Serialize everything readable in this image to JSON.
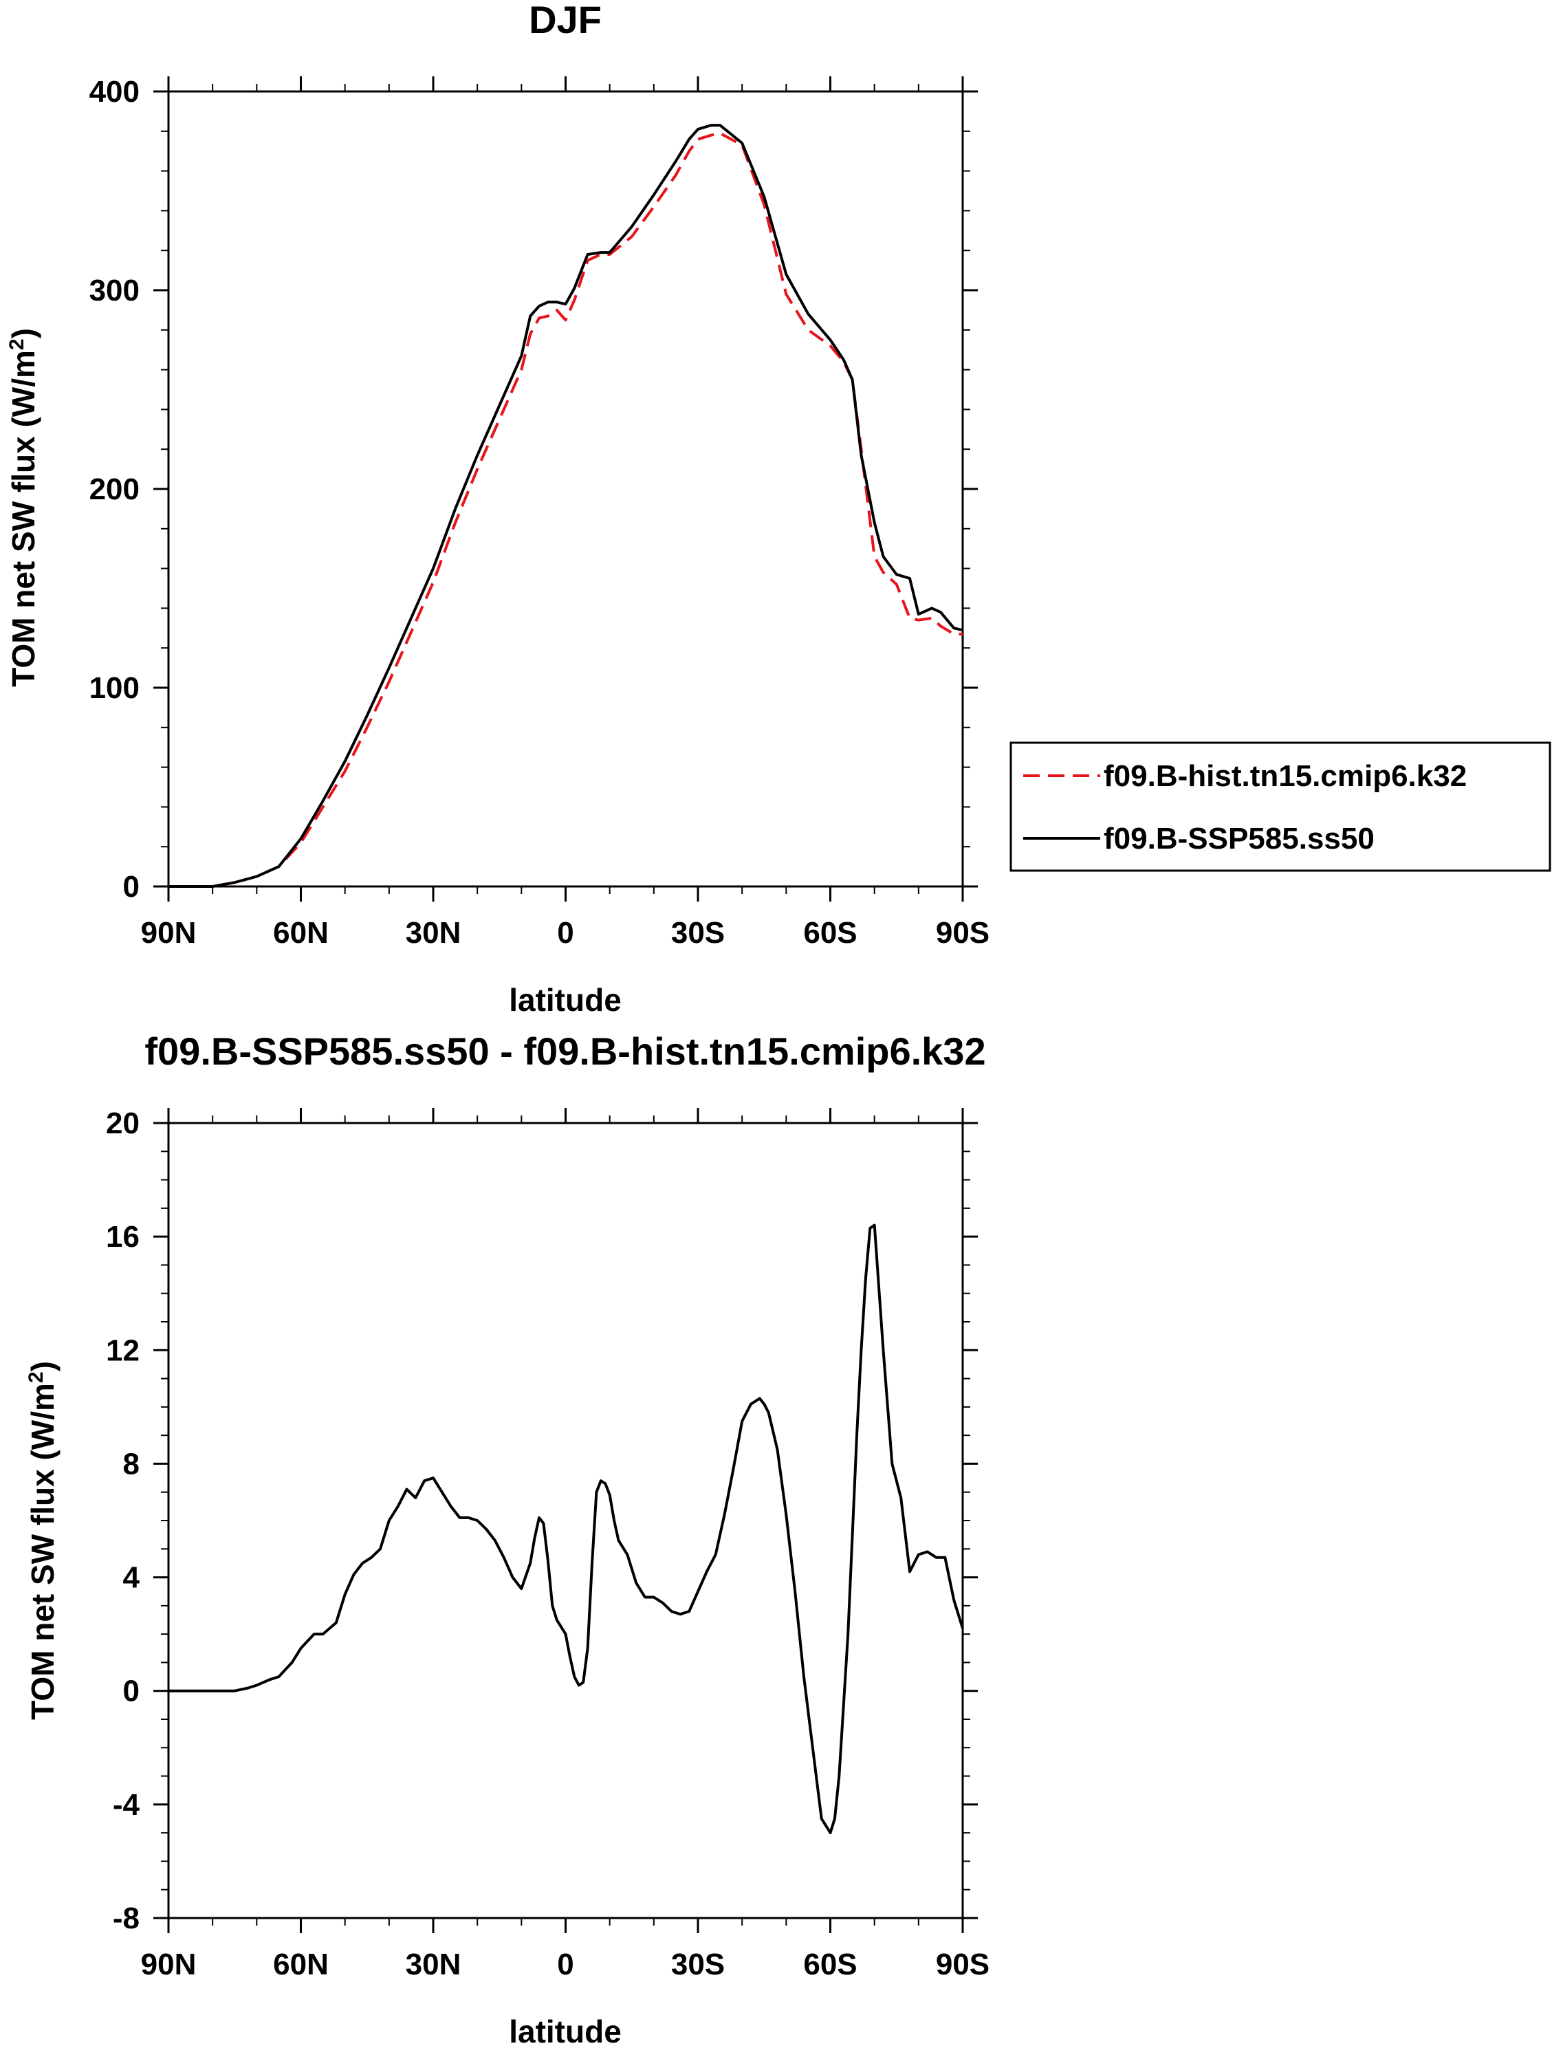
{
  "chart_data": [
    {
      "type": "line",
      "title": "DJF",
      "xlabel": "latitude",
      "ylabel_prefix": "TOM net SW flux (W/m",
      "ylabel_sup": "2",
      "ylabel_suffix": ")",
      "xlim": [
        90,
        -90
      ],
      "ylim": [
        0,
        400
      ],
      "xticks": [
        90,
        60,
        30,
        0,
        -30,
        -60,
        -90
      ],
      "xtick_labels": [
        "90N",
        "60N",
        "30N",
        "0",
        "30S",
        "60S",
        "90S"
      ],
      "yticks": [
        0,
        100,
        200,
        300,
        400
      ],
      "ytick_labels": [
        "0",
        "100",
        "200",
        "300",
        "400"
      ],
      "legend_position": "right",
      "series": [
        {
          "name": "f09.B-hist.tn15.cmip6.k32",
          "color": "#e8141b",
          "style": "dashed",
          "x": [
            90,
            85,
            80,
            75,
            70,
            65,
            60,
            55,
            50,
            45,
            40,
            35,
            30,
            25,
            20,
            15,
            10,
            8,
            6,
            4,
            2,
            0,
            -2,
            -5,
            -8,
            -10,
            -15,
            -20,
            -25,
            -28,
            -30,
            -33,
            -35,
            -40,
            -45,
            -50,
            -55,
            -60,
            -63,
            -65,
            -67,
            -70,
            -72,
            -75,
            -78,
            -80,
            -83,
            -85,
            -88,
            -90
          ],
          "y": [
            0,
            0,
            0,
            2,
            5,
            10,
            22,
            40,
            58,
            80,
            103,
            128,
            153,
            183,
            210,
            235,
            260,
            278,
            286,
            287,
            290,
            285,
            295,
            315,
            318,
            318,
            327,
            342,
            358,
            370,
            376,
            378,
            379,
            373,
            343,
            298,
            280,
            272,
            264,
            255,
            220,
            166,
            158,
            152,
            135,
            134,
            135,
            131,
            127,
            127
          ]
        },
        {
          "name": "f09.B-SSP585.ss50",
          "color": "#000000",
          "style": "solid",
          "x": [
            90,
            85,
            80,
            75,
            70,
            65,
            60,
            55,
            50,
            45,
            40,
            35,
            30,
            25,
            20,
            15,
            10,
            8,
            6,
            4,
            2,
            0,
            -2,
            -5,
            -8,
            -10,
            -15,
            -20,
            -25,
            -28,
            -30,
            -33,
            -35,
            -40,
            -45,
            -50,
            -55,
            -60,
            -63,
            -65,
            -67,
            -70,
            -72,
            -75,
            -78,
            -80,
            -83,
            -85,
            -88,
            -90
          ],
          "y": [
            0,
            0,
            0,
            2,
            5,
            10,
            24,
            43,
            63,
            86,
            110,
            135,
            160,
            190,
            217,
            242,
            267,
            287,
            292,
            294,
            294,
            293,
            301,
            318,
            319,
            319,
            332,
            348,
            365,
            376,
            381,
            383,
            383,
            374,
            347,
            308,
            288,
            275,
            265,
            255,
            217,
            183,
            166,
            157,
            155,
            137,
            140,
            138,
            130,
            129
          ]
        }
      ]
    },
    {
      "type": "line",
      "title": "f09.B-SSP585.ss50 - f09.B-hist.tn15.cmip6.k32",
      "xlabel": "latitude",
      "ylabel_prefix": "TOM net SW flux (W/m",
      "ylabel_sup": "2",
      "ylabel_suffix": ")",
      "xlim": [
        90,
        -90
      ],
      "ylim": [
        -8,
        20
      ],
      "xticks": [
        90,
        60,
        30,
        0,
        -30,
        -60,
        -90
      ],
      "xtick_labels": [
        "90N",
        "60N",
        "30N",
        "0",
        "30S",
        "60S",
        "90S"
      ],
      "yticks": [
        -8,
        -4,
        0,
        4,
        8,
        12,
        16,
        20
      ],
      "ytick_labels": [
        "-8",
        "-4",
        "0",
        "4",
        "8",
        "12",
        "16",
        "20"
      ],
      "series": [
        {
          "name": "f09.B-SSP585.ss50 - f09.B-hist.tn15.cmip6.k32",
          "color": "#000000",
          "style": "solid",
          "x": [
            90,
            85,
            80,
            75,
            72,
            70,
            67,
            65,
            62,
            60,
            57,
            55,
            52,
            50,
            48,
            46,
            44,
            42,
            40,
            38,
            36,
            34,
            32,
            30,
            28,
            26,
            24,
            22,
            20,
            18,
            16,
            14,
            12,
            10,
            8,
            7,
            6,
            5,
            4,
            3,
            2,
            0,
            -1,
            -2,
            -3,
            -4,
            -5,
            -6,
            -7,
            -8,
            -9,
            -10,
            -11,
            -12,
            -14,
            -16,
            -18,
            -20,
            -22,
            -24,
            -26,
            -28,
            -30,
            -32,
            -34,
            -36,
            -38,
            -40,
            -42,
            -44,
            -45,
            -46,
            -48,
            -50,
            -52,
            -54,
            -56,
            -58,
            -60,
            -61,
            -62,
            -64,
            -66,
            -67,
            -68,
            -69,
            -70,
            -72,
            -74,
            -76,
            -78,
            -80,
            -82,
            -84,
            -86,
            -88,
            -90
          ],
          "y": [
            0,
            0,
            0,
            0,
            0.1,
            0.2,
            0.4,
            0.5,
            1.0,
            1.5,
            2.0,
            2.0,
            2.4,
            3.4,
            4.1,
            4.5,
            4.7,
            5.0,
            6.0,
            6.5,
            7.1,
            6.8,
            7.4,
            7.5,
            7.0,
            6.5,
            6.1,
            6.1,
            6.0,
            5.7,
            5.3,
            4.7,
            4.0,
            3.6,
            4.5,
            5.4,
            6.1,
            5.9,
            4.6,
            3.0,
            2.5,
            2.0,
            1.2,
            0.5,
            0.2,
            0.3,
            1.5,
            4.5,
            7.0,
            7.4,
            7.3,
            6.9,
            6.0,
            5.3,
            4.8,
            3.8,
            3.3,
            3.3,
            3.1,
            2.8,
            2.7,
            2.8,
            3.5,
            4.2,
            4.8,
            6.2,
            7.8,
            9.5,
            10.1,
            10.3,
            10.1,
            9.8,
            8.5,
            6.2,
            3.5,
            0.5,
            -2.0,
            -4.5,
            -5.0,
            -4.5,
            -3.0,
            2.0,
            9.0,
            12.0,
            14.5,
            16.3,
            16.4,
            12.0,
            8.0,
            6.8,
            4.2,
            4.8,
            4.9,
            4.7,
            4.7,
            3.2,
            2.2
          ]
        }
      ]
    }
  ]
}
